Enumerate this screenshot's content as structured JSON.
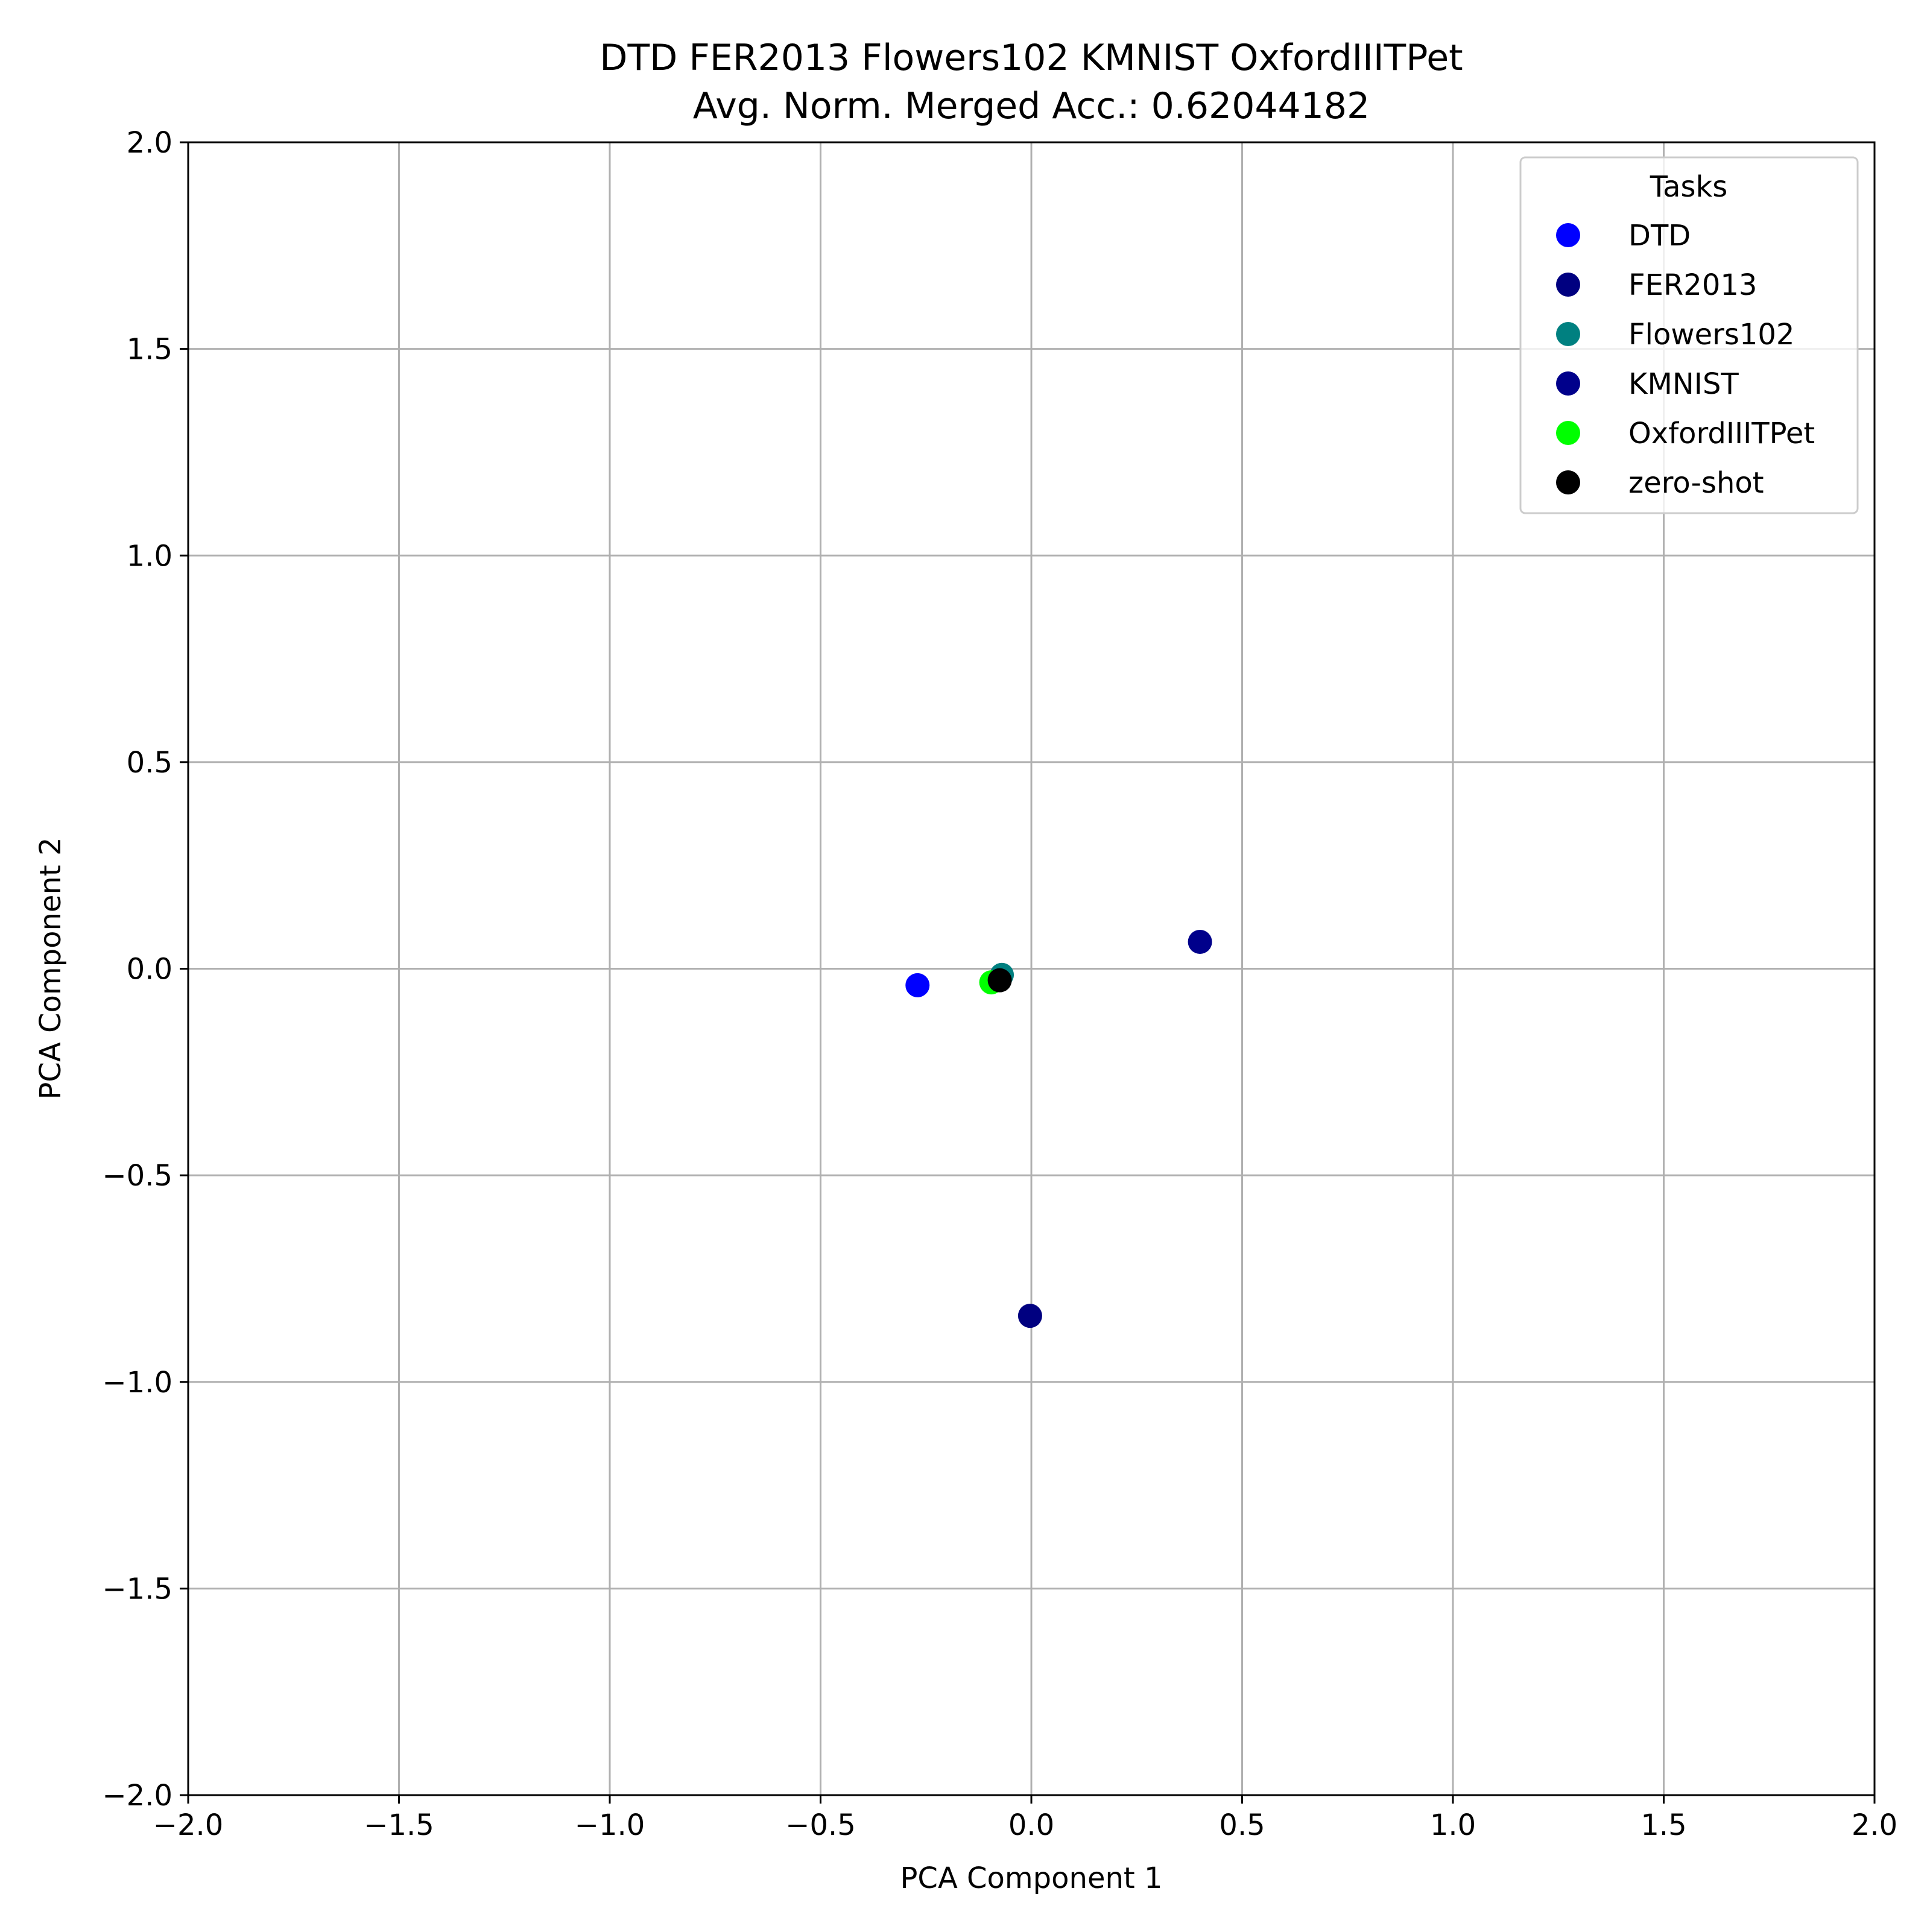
{
  "chart_data": {
    "type": "scatter",
    "title": "DTD FER2013 Flowers102 KMNIST OxfordIIITPet",
    "subtitle": "Avg. Norm. Merged Acc.: 0.62044182",
    "xlabel": "PCA Component 1",
    "ylabel": "PCA Component 2",
    "xlim": [
      -2.0,
      2.0
    ],
    "ylim": [
      -2.0,
      2.0
    ],
    "xticks": [
      -2.0,
      -1.5,
      -1.0,
      -0.5,
      0.0,
      0.5,
      1.0,
      1.5,
      2.0
    ],
    "yticks": [
      -2.0,
      -1.5,
      -1.0,
      -0.5,
      0.0,
      0.5,
      1.0,
      1.5,
      2.0
    ],
    "xtick_labels": [
      "−2.0",
      "−1.5",
      "−1.0",
      "−0.5",
      "0.0",
      "0.5",
      "1.0",
      "1.5",
      "2.0"
    ],
    "ytick_labels": [
      "−2.0",
      "−1.5",
      "−1.0",
      "−0.5",
      "0.0",
      "0.5",
      "1.0",
      "1.5",
      "2.0"
    ],
    "grid": true,
    "legend": {
      "title": "Tasks",
      "placement": "top-right"
    },
    "series": [
      {
        "name": "DTD",
        "color": "#0000ff",
        "x": [
          -0.27
        ],
        "y": [
          -0.04
        ]
      },
      {
        "name": "FER2013",
        "color": "#000080",
        "x": [
          -0.003
        ],
        "y": [
          -0.84
        ]
      },
      {
        "name": "Flowers102",
        "color": "#008080",
        "x": [
          -0.07
        ],
        "y": [
          -0.015
        ]
      },
      {
        "name": "KMNIST",
        "color": "#00008b",
        "x": [
          0.4
        ],
        "y": [
          0.065
        ]
      },
      {
        "name": "OxfordIIITPet",
        "color": "#00ff00",
        "x": [
          -0.095
        ],
        "y": [
          -0.033
        ]
      },
      {
        "name": "zero-shot",
        "color": "#000000",
        "x": [
          -0.075
        ],
        "y": [
          -0.028
        ]
      }
    ]
  }
}
